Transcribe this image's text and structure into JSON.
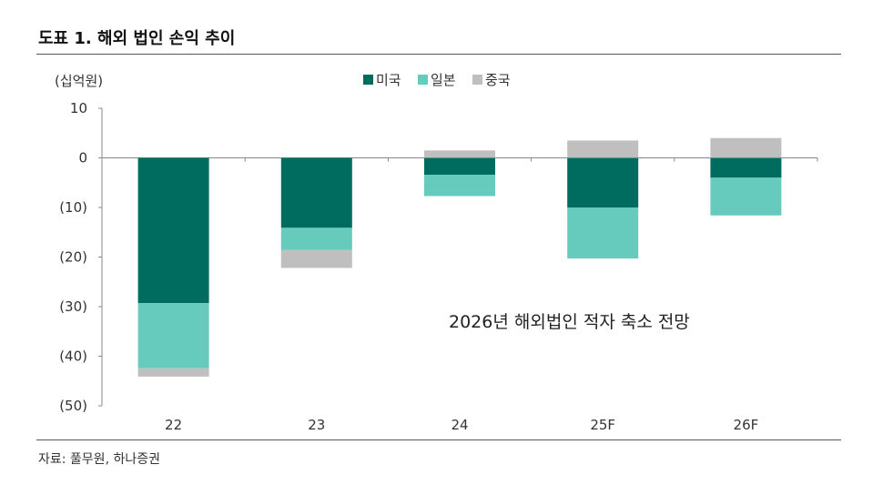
{
  "header": {
    "title": "도표 1. 해외 법인 손익 추이"
  },
  "footer": {
    "source": "자료: 풀무원, 하나증권"
  },
  "chart_data": {
    "type": "bar",
    "stacked": true,
    "unit_label": "(십억원)",
    "categories": [
      "22",
      "23",
      "24",
      "25F",
      "26F"
    ],
    "series": [
      {
        "name": "미국",
        "color": "#006b5f",
        "values": [
          -29.3,
          -14.1,
          -3.4,
          -10.0,
          -4.0
        ]
      },
      {
        "name": "일본",
        "color": "#66cbbd",
        "values": [
          -13.1,
          -4.5,
          -4.3,
          -10.3,
          -7.6
        ]
      },
      {
        "name": "중국",
        "color": "#bfbfbf",
        "values": [
          -1.7,
          -3.6,
          1.5,
          3.5,
          4.0
        ]
      }
    ],
    "ylim": [
      -50,
      10
    ],
    "yticks": [
      10,
      0,
      -10,
      -20,
      -30,
      -40,
      -50
    ],
    "ytick_labels": [
      "10",
      "0",
      "(10)",
      "(20)",
      "(30)",
      "(40)",
      "(50)"
    ],
    "annotation": "2026년 해외법인 적자 축소 전망",
    "legend_position": "top-center"
  }
}
